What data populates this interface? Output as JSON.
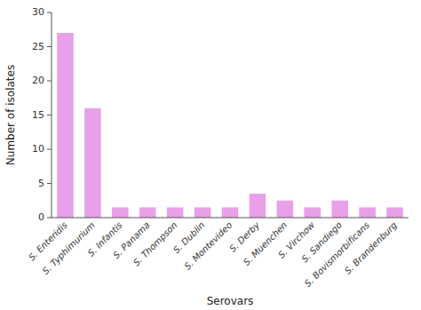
{
  "chart_data": {
    "type": "bar",
    "categories": [
      "S. Enteridis",
      "S. Typhimurium",
      "S. Infantis",
      "S. Panama",
      "S. Thompson",
      "S. Dublin",
      "S. Montevideo",
      "S. Derby",
      "S. Muenchen",
      "S. Virchow",
      "S. Sandiego",
      "S. Bovismorbificans",
      "S. Brandenburg"
    ],
    "values": [
      27,
      16,
      1.5,
      1.5,
      1.5,
      1.5,
      1.5,
      3.5,
      2.5,
      1.5,
      2.5,
      1.5,
      1.5
    ],
    "color": "#E8A0E8",
    "xlabel": "Serovars",
    "ylabel": "Number of isolates",
    "ylim": [
      0,
      30
    ],
    "yticks": [
      0,
      5,
      10,
      15,
      20,
      25,
      30
    ]
  }
}
